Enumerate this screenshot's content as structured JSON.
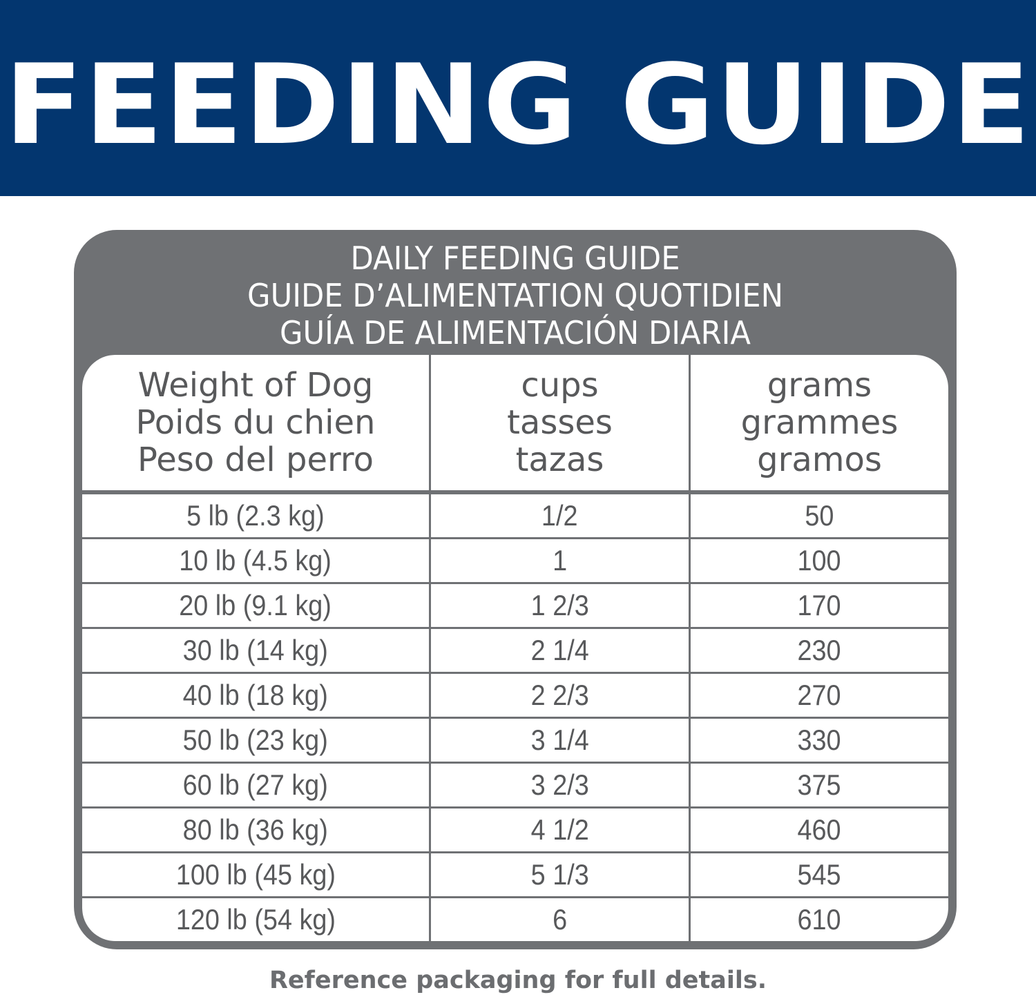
{
  "banner": {
    "title": "FEEDING GUIDE"
  },
  "card": {
    "titles": [
      "DAILY FEEDING GUIDE",
      "GUIDE D’ALIMENTATION QUOTIDIEN",
      "GUÍA DE ALIMENTACIÓN DIARIA"
    ]
  },
  "table": {
    "headers": [
      [
        "Weight of Dog",
        "Poids du chien",
        "Peso del perro"
      ],
      [
        "cups",
        "tasses",
        "tazas"
      ],
      [
        "grams",
        "grammes",
        "gramos"
      ]
    ],
    "rows": [
      [
        "5 lb (2.3 kg)",
        "1/2",
        "50"
      ],
      [
        "10 lb (4.5 kg)",
        "1",
        "100"
      ],
      [
        "20 lb (9.1 kg)",
        "1 2/3",
        "170"
      ],
      [
        "30 lb (14 kg)",
        "2 1/4",
        "230"
      ],
      [
        "40 lb (18 kg)",
        "2 2/3",
        "270"
      ],
      [
        "50 lb (23 kg)",
        "3 1/4",
        "330"
      ],
      [
        "60 lb (27 kg)",
        "3 2/3",
        "375"
      ],
      [
        "80 lb (36 kg)",
        "4 1/2",
        "460"
      ],
      [
        "100 lb (45 kg)",
        "5 1/3",
        "545"
      ],
      [
        "120 lb (54 kg)",
        "6",
        "610"
      ]
    ]
  },
  "footer": {
    "note": "Reference packaging for full details."
  },
  "colors": {
    "banner": "#03366f",
    "card": "#6f7174",
    "text": "#58595b"
  }
}
